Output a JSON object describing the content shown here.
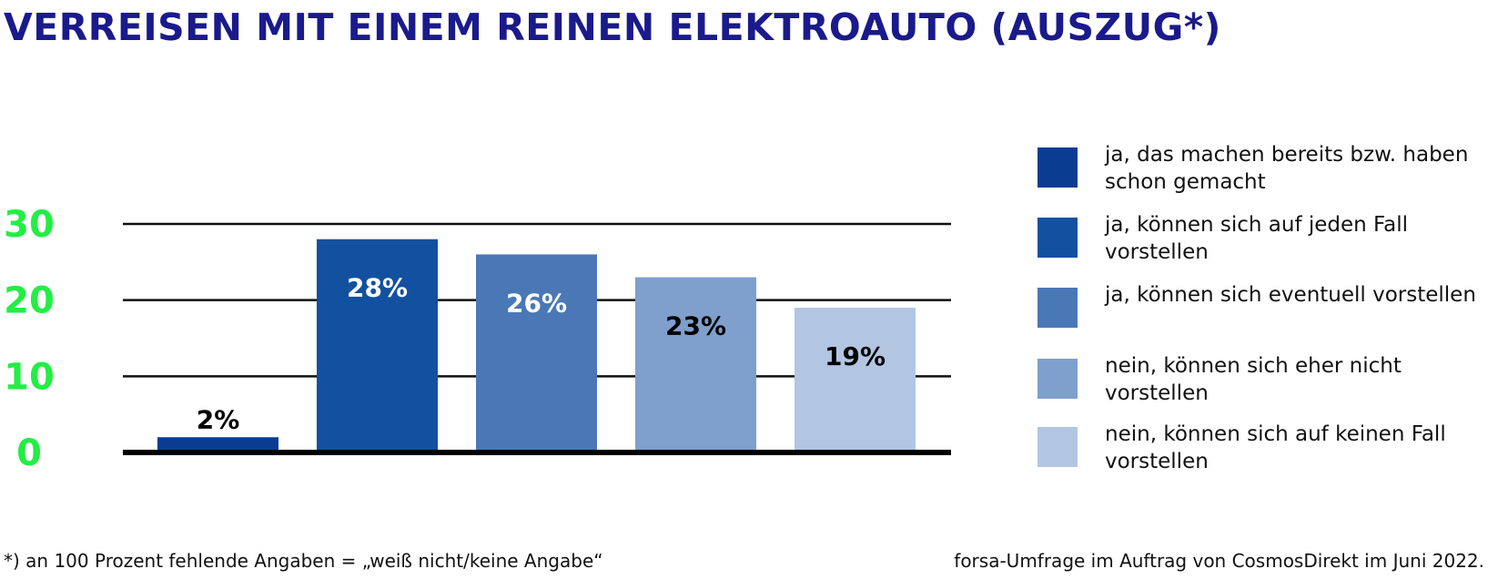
{
  "title": "VERREISEN MIT EINEM REINEN ELEKTROAUTO (AUSZUG*)",
  "footnote_left": "*) an 100 Prozent fehlende Angaben = „weiß nicht/keine Angabe“",
  "footnote_right": "forsa-Umfrage im Auftrag von CosmosDirekt im Juni 2022.",
  "chart_data": {
    "type": "bar",
    "title": "VERREISEN MIT EINEM REINEN ELEKTROAUTO (AUSZUG*)",
    "xlabel": "",
    "ylabel": "",
    "ylim": [
      0,
      30
    ],
    "yticks": [
      0,
      10,
      20,
      30
    ],
    "ytick_labels": [
      "0",
      "10",
      "20",
      "30"
    ],
    "grid": true,
    "legend_position": "right",
    "categories": [
      "ja, das machen bereits bzw. haben schon gemacht",
      "ja, können sich auf jeden Fall vorstellen",
      "ja, können sich eventuell vorstellen",
      "nein, können sich eher nicht vorstellen",
      "nein, können sich auf keinen Fall vorstellen"
    ],
    "values": [
      2,
      28,
      26,
      23,
      19
    ],
    "data_labels": [
      "2%",
      "28%",
      "26%",
      "23%",
      "19%"
    ],
    "colors": [
      "#0a3d91",
      "#12519f",
      "#4a78b6",
      "#7f9fcc",
      "#b2c6e2"
    ],
    "label_colors": [
      "#000000",
      "#ffffff",
      "#ffffff",
      "#000000",
      "#000000"
    ],
    "ytick_color": "#22ee44"
  }
}
